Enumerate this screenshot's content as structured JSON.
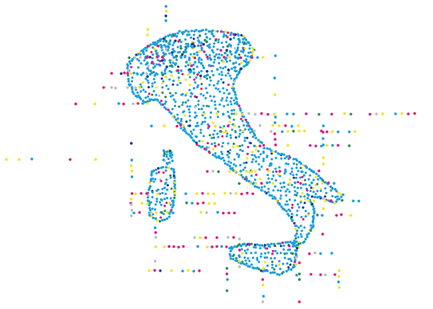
{
  "map": {
    "type": "dot-map",
    "region": "Italy",
    "background": "#ffffff",
    "palette": {
      "blue": "#1a9fe0",
      "yellow": "#f5e31c",
      "magenta": "#e0197d",
      "gray": "#bdbdbd",
      "green": "#2e8b57",
      "navy": "#1b3a8f"
    }
  }
}
